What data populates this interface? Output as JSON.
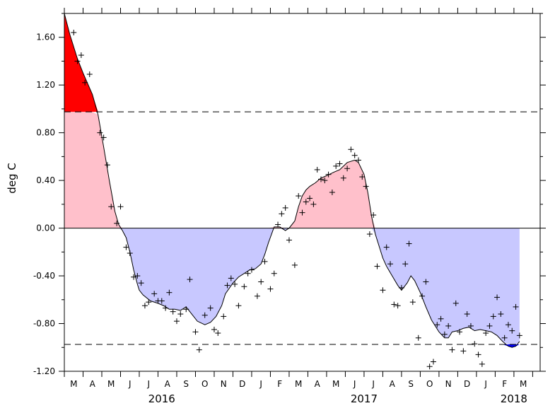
{
  "chart_data": {
    "type": "area",
    "title": "",
    "xlabel": "",
    "ylabel": "deg C",
    "ylim": [
      -1.2,
      1.8
    ],
    "y_ticks": [
      {
        "value": 1.6,
        "label": "1.60"
      },
      {
        "value": 1.2,
        "label": "1.20"
      },
      {
        "value": 0.8,
        "label": "0.80"
      },
      {
        "value": 0.4,
        "label": "0.40"
      },
      {
        "value": 0.0,
        "label": "0.00"
      },
      {
        "value": -0.4,
        "label": "-0.40"
      },
      {
        "value": -0.8,
        "label": "-0.80"
      },
      {
        "value": -1.2,
        "label": "-1.20"
      }
    ],
    "x_range": [
      0,
      25.4
    ],
    "x_axis_units": "months since the start of the axis (the M tick is the first month)",
    "month_ticks": [
      {
        "x": 0.5,
        "label": "M"
      },
      {
        "x": 1.5,
        "label": "A"
      },
      {
        "x": 2.5,
        "label": "M"
      },
      {
        "x": 3.5,
        "label": "J"
      },
      {
        "x": 4.5,
        "label": "J"
      },
      {
        "x": 5.5,
        "label": "A"
      },
      {
        "x": 6.5,
        "label": "S"
      },
      {
        "x": 7.5,
        "label": "O"
      },
      {
        "x": 8.5,
        "label": "N"
      },
      {
        "x": 9.5,
        "label": "D"
      },
      {
        "x": 10.5,
        "label": "J"
      },
      {
        "x": 11.5,
        "label": "F"
      },
      {
        "x": 12.5,
        "label": "M"
      },
      {
        "x": 13.5,
        "label": "A"
      },
      {
        "x": 14.5,
        "label": "M"
      },
      {
        "x": 15.5,
        "label": "J"
      },
      {
        "x": 16.5,
        "label": "J"
      },
      {
        "x": 17.5,
        "label": "A"
      },
      {
        "x": 18.5,
        "label": "S"
      },
      {
        "x": 19.5,
        "label": "O"
      },
      {
        "x": 20.5,
        "label": "N"
      },
      {
        "x": 21.5,
        "label": "D"
      },
      {
        "x": 22.5,
        "label": "J"
      },
      {
        "x": 23.5,
        "label": "F"
      },
      {
        "x": 24.5,
        "label": "M"
      }
    ],
    "year_labels": [
      {
        "x": 5.2,
        "label": "2016"
      },
      {
        "x": 16.0,
        "label": "2017"
      },
      {
        "x": 24.0,
        "label": "2018"
      }
    ],
    "thresholds": [
      0.975,
      -0.975
    ],
    "fill_colors": {
      "strong_positive": "#ff0000",
      "positive": "#ffc0cb",
      "negative": "#c8c8ff",
      "strong_negative": "#0000ff"
    },
    "series": [
      {
        "kind": "smoothed-line",
        "x": [
          0,
          0.3,
          0.7,
          1.0,
          1.5,
          1.8,
          2.1,
          2.4,
          2.7,
          2.9,
          3.1,
          3.3,
          3.5,
          3.7,
          3.9,
          4.0,
          4.2,
          4.6,
          5.0,
          5.3,
          5.6,
          5.9,
          6.2,
          6.5,
          6.8,
          7.1,
          7.5,
          7.8,
          8.1,
          8.4,
          8.6,
          9.0,
          9.3,
          9.6,
          9.9,
          10.2,
          10.5,
          10.7,
          10.9,
          11.2,
          11.5,
          11.8,
          12.0,
          12.3,
          12.5,
          12.7,
          12.9,
          13.1,
          13.4,
          13.7,
          14.0,
          14.4,
          14.7,
          15.1,
          15.5,
          15.7,
          16.0,
          16.2,
          16.4,
          16.6,
          16.8,
          17.0,
          17.2,
          17.5,
          17.8,
          18.0,
          18.3,
          18.5,
          18.7,
          19.0,
          19.3,
          19.6,
          20.0,
          20.3,
          20.5,
          20.7,
          21.0,
          21.3,
          21.6,
          21.9,
          22.2,
          22.5,
          22.8,
          23.1,
          23.4,
          23.7,
          23.9,
          24.1,
          24.3
        ],
        "y": [
          1.8,
          1.62,
          1.42,
          1.3,
          1.12,
          0.95,
          0.68,
          0.4,
          0.14,
          0.03,
          -0.02,
          -0.08,
          -0.2,
          -0.35,
          -0.47,
          -0.52,
          -0.56,
          -0.61,
          -0.63,
          -0.65,
          -0.68,
          -0.68,
          -0.69,
          -0.66,
          -0.72,
          -0.78,
          -0.81,
          -0.79,
          -0.74,
          -0.65,
          -0.55,
          -0.46,
          -0.41,
          -0.38,
          -0.35,
          -0.34,
          -0.3,
          -0.22,
          -0.12,
          0.01,
          0.01,
          -0.02,
          0.0,
          0.06,
          0.18,
          0.27,
          0.32,
          0.35,
          0.38,
          0.42,
          0.44,
          0.47,
          0.49,
          0.55,
          0.57,
          0.55,
          0.45,
          0.3,
          0.1,
          -0.05,
          -0.15,
          -0.25,
          -0.32,
          -0.4,
          -0.48,
          -0.52,
          -0.46,
          -0.4,
          -0.44,
          -0.54,
          -0.66,
          -0.77,
          -0.87,
          -0.92,
          -0.92,
          -0.87,
          -0.86,
          -0.84,
          -0.83,
          -0.86,
          -0.85,
          -0.86,
          -0.87,
          -0.9,
          -0.95,
          -0.99,
          -1.0,
          -0.99,
          -0.95
        ]
      },
      {
        "kind": "monthly-points",
        "x": [
          0.5,
          0.7,
          0.9,
          1.1,
          1.35,
          1.9,
          2.1,
          2.3,
          2.5,
          2.8,
          3.0,
          3.3,
          3.5,
          3.7,
          3.9,
          4.1,
          4.3,
          4.5,
          4.8,
          5.0,
          5.2,
          5.4,
          5.6,
          5.8,
          6.0,
          6.2,
          6.5,
          6.7,
          7.0,
          7.2,
          7.5,
          7.8,
          8.0,
          8.2,
          8.5,
          8.7,
          8.9,
          9.1,
          9.3,
          9.6,
          9.8,
          10.0,
          10.3,
          10.5,
          10.7,
          11.0,
          11.2,
          11.4,
          11.6,
          11.8,
          12.0,
          12.3,
          12.5,
          12.7,
          12.9,
          13.1,
          13.3,
          13.5,
          13.7,
          13.9,
          14.1,
          14.3,
          14.5,
          14.7,
          14.9,
          15.1,
          15.3,
          15.5,
          15.7,
          15.9,
          16.1,
          16.3,
          16.5,
          16.7,
          17.0,
          17.2,
          17.4,
          17.6,
          17.8,
          18.0,
          18.2,
          18.4,
          18.6,
          18.9,
          19.1,
          19.3,
          19.5,
          19.7,
          19.9,
          20.1,
          20.3,
          20.5,
          20.7,
          20.9,
          21.1,
          21.3,
          21.5,
          21.7,
          21.9,
          22.1,
          22.3,
          22.5,
          22.7,
          22.9,
          23.1,
          23.3,
          23.5,
          23.7,
          23.9,
          24.1,
          24.3
        ],
        "y": [
          1.64,
          1.4,
          1.45,
          1.22,
          1.29,
          0.8,
          0.76,
          0.53,
          0.18,
          0.04,
          0.18,
          -0.16,
          -0.21,
          -0.41,
          -0.4,
          -0.46,
          -0.65,
          -0.62,
          -0.55,
          -0.61,
          -0.61,
          -0.67,
          -0.54,
          -0.7,
          -0.78,
          -0.72,
          -0.68,
          -0.43,
          -0.87,
          -1.02,
          -0.73,
          -0.67,
          -0.85,
          -0.88,
          -0.74,
          -0.48,
          -0.42,
          -0.47,
          -0.65,
          -0.49,
          -0.38,
          -0.35,
          -0.57,
          -0.45,
          -0.28,
          -0.51,
          -0.38,
          0.03,
          0.12,
          0.17,
          -0.1,
          -0.31,
          0.27,
          0.13,
          0.22,
          0.25,
          0.2,
          0.49,
          0.41,
          0.4,
          0.45,
          0.3,
          0.52,
          0.54,
          0.42,
          0.5,
          0.66,
          0.61,
          0.57,
          0.43,
          0.35,
          -0.05,
          0.11,
          -0.32,
          -0.52,
          -0.16,
          -0.3,
          -0.64,
          -0.65,
          -0.5,
          -0.3,
          -0.13,
          -0.62,
          -0.92,
          -0.57,
          -0.45,
          -1.16,
          -1.12,
          -0.81,
          -0.76,
          -0.89,
          -0.82,
          -1.02,
          -0.63,
          -0.87,
          -1.03,
          -0.72,
          -0.82,
          -0.97,
          -1.06,
          -1.14,
          -0.88,
          -0.82,
          -0.74,
          -0.58,
          -0.72,
          -0.92,
          -0.81,
          -0.86,
          -0.66,
          -0.9
        ]
      }
    ]
  }
}
